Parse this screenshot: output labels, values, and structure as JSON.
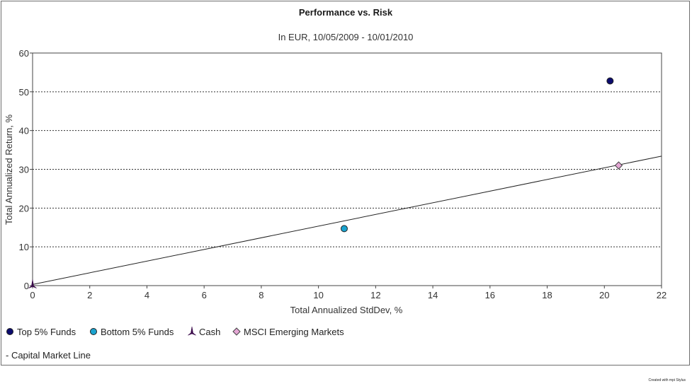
{
  "chart_data": {
    "type": "scatter",
    "title": "Performance vs. Risk",
    "subtitle": "In EUR, 10/05/2009 - 10/01/2010",
    "xlabel": "Total Annualized StdDev, %",
    "ylabel": "Total Annualized Return, %",
    "xlim": [
      0,
      22
    ],
    "ylim": [
      0,
      60
    ],
    "xticks": [
      0,
      2,
      4,
      6,
      8,
      10,
      12,
      14,
      16,
      18,
      20,
      22
    ],
    "yticks": [
      0,
      10,
      20,
      30,
      40,
      50,
      60
    ],
    "grid": "horizontal dashed",
    "series": [
      {
        "name": "Top 5% Funds",
        "marker": "circle",
        "color": "#0b0b6e",
        "x": 20.2,
        "y": 52.8
      },
      {
        "name": "Bottom 5% Funds",
        "marker": "circle",
        "color": "#1aa3cf",
        "x": 10.9,
        "y": 14.7
      },
      {
        "name": "Cash",
        "marker": "tri-star",
        "color": "#3a0a4a",
        "x": 0.0,
        "y": 0.3
      },
      {
        "name": "MSCI Emerging Markets",
        "marker": "diamond",
        "color": "#e4a6d4",
        "x": 20.5,
        "y": 31.0
      }
    ],
    "line": {
      "name": "Capital Market Line",
      "x": [
        0,
        22
      ],
      "y": [
        0.3,
        33.4
      ]
    },
    "legend_placement": "bottom-left"
  },
  "legend_line_label": "- Capital Market Line",
  "credit": "Created with mpi Stylus"
}
